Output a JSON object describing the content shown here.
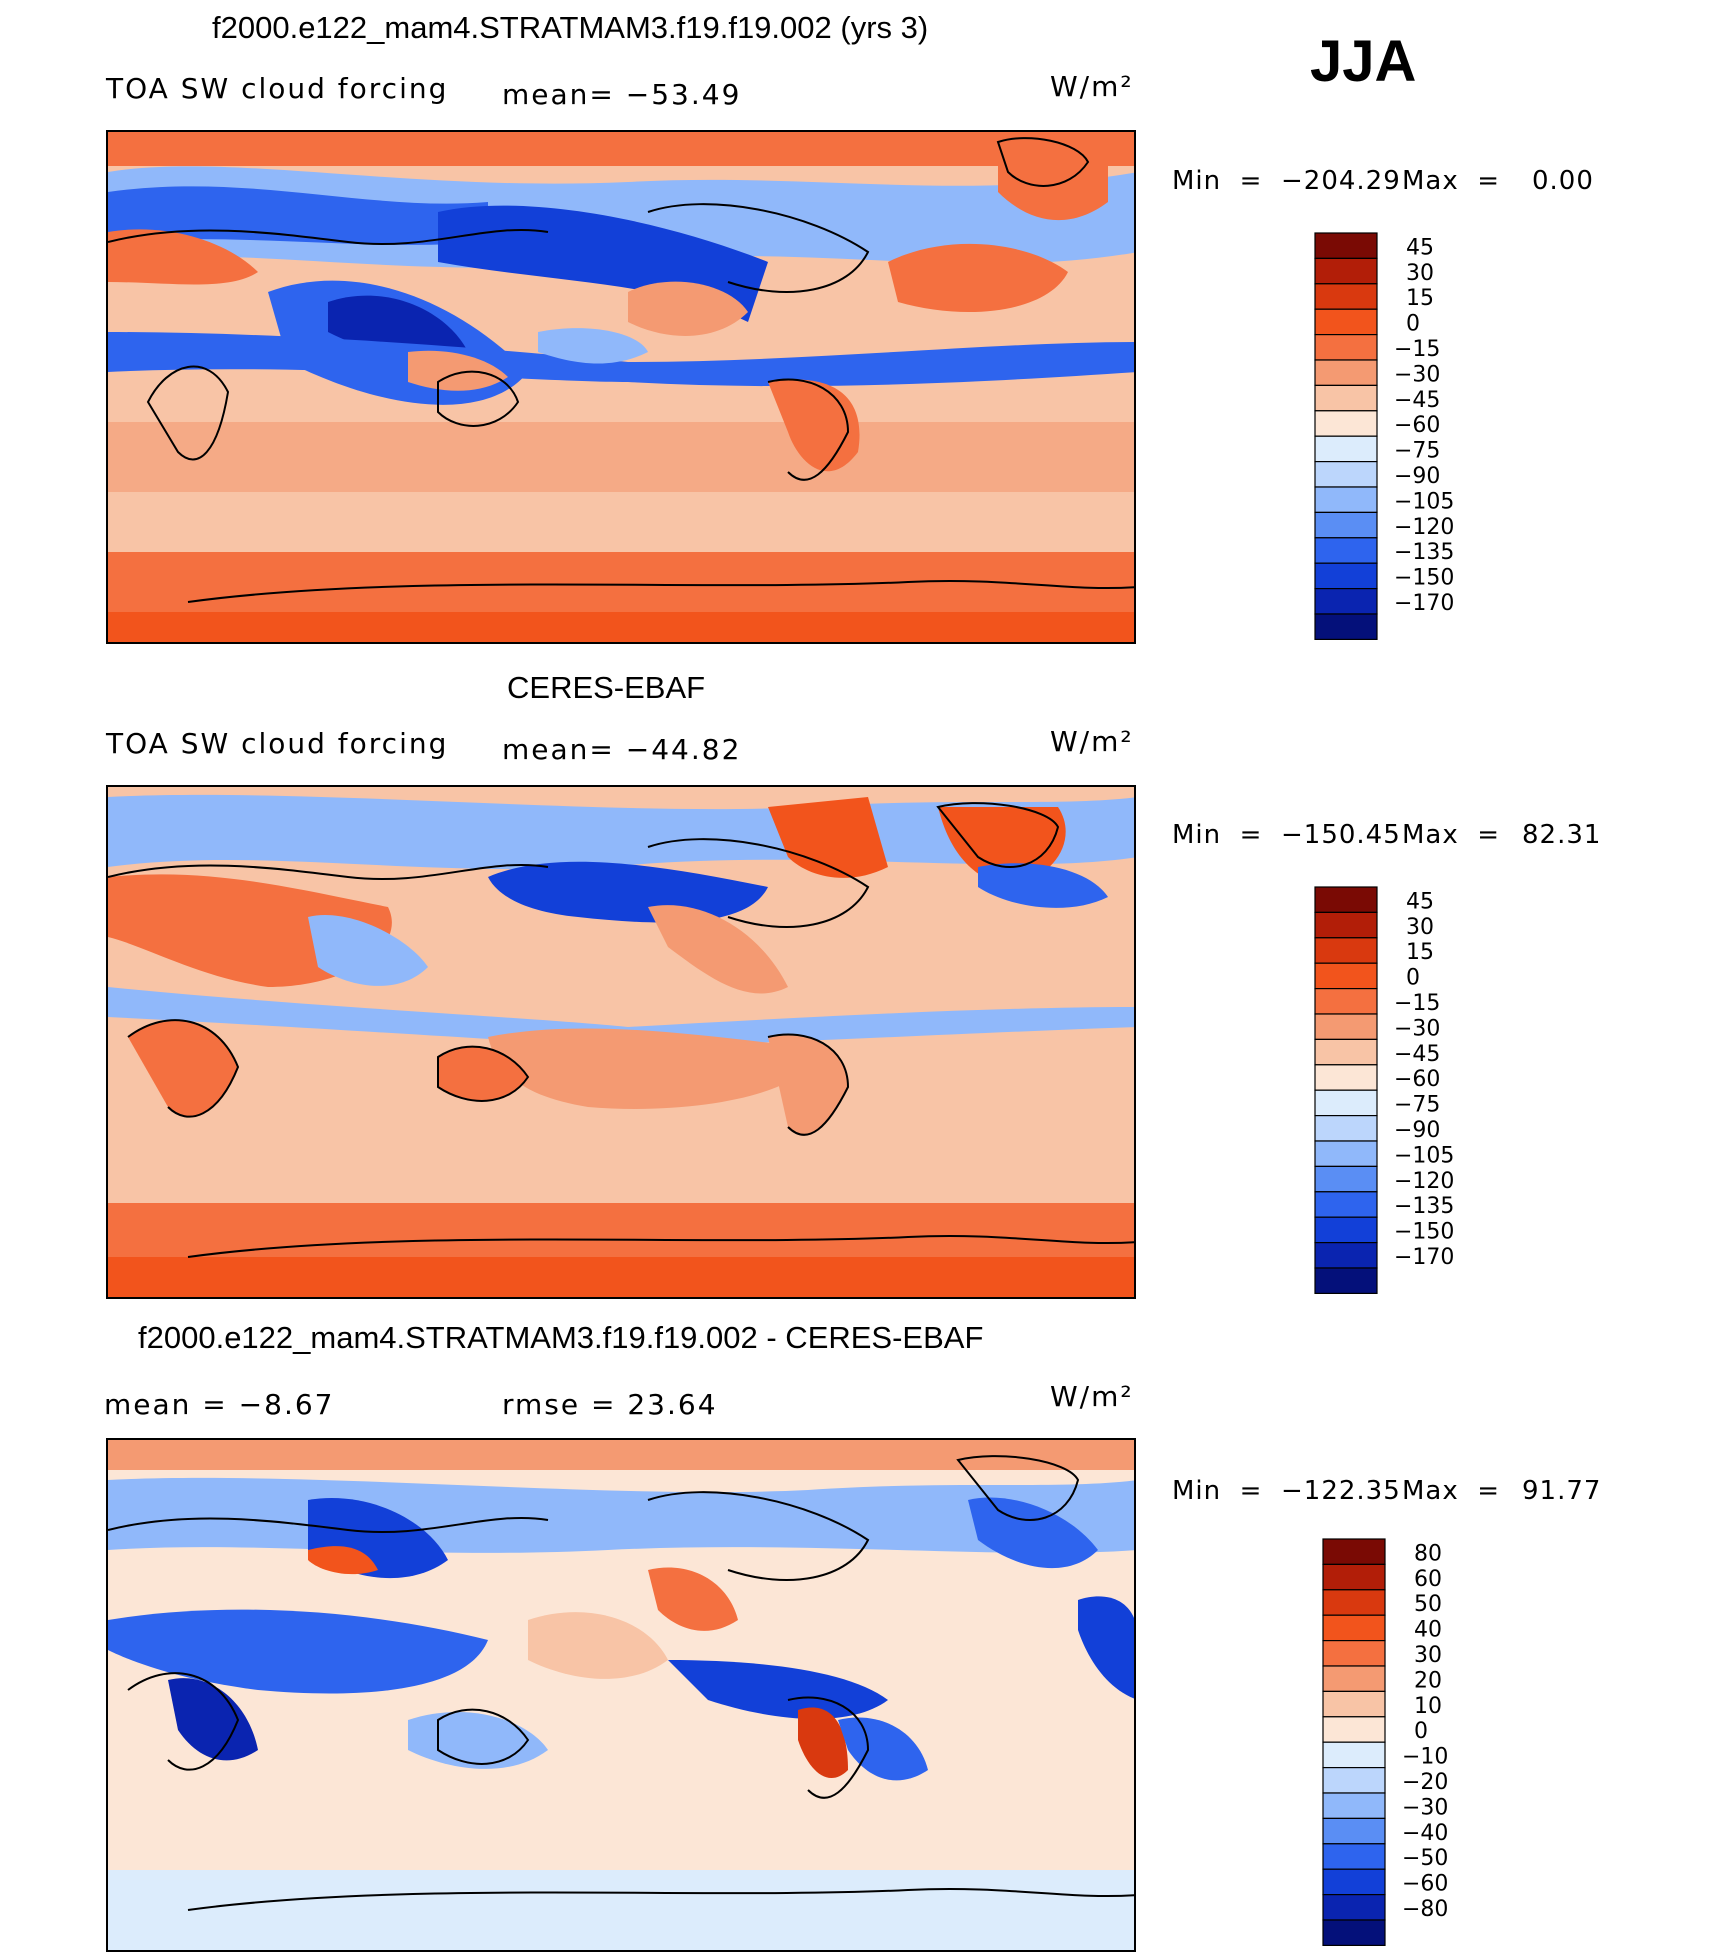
{
  "season": "JJA",
  "panels": [
    {
      "title": "f2000.e122_mam4.STRATMAM3.f19.f19.002 (yrs 3)",
      "left_label": "TOA SW cloud forcing",
      "center_label": "mean= −53.49",
      "units": "W/m²",
      "min_text": "Min",
      "min_value": "−204.29",
      "max_text": "Max",
      "max_value": "0.00",
      "colorbar": {
        "labels": [
          "45",
          "30",
          "15",
          "0",
          "−15",
          "−30",
          "−45",
          "−60",
          "−75",
          "−90",
          "−105",
          "−120",
          "−135",
          "−150",
          "−170"
        ],
        "colors": [
          "#7a0a04",
          "#b21e08",
          "#d9390f",
          "#f2541c",
          "#f47040",
          "#f49a72",
          "#f8c4a6",
          "#fce6d6",
          "#dcecfc",
          "#bcd6fc",
          "#90b8fa",
          "#5a8ef4",
          "#2e64ee",
          "#1240d8",
          "#0a24b0",
          "#04107a"
        ]
      }
    },
    {
      "title": "CERES-EBAF",
      "left_label": "TOA SW cloud forcing",
      "center_label": "mean= −44.82",
      "units": "W/m²",
      "min_text": "Min",
      "min_value": "−150.45",
      "max_text": "Max",
      "max_value": "82.31",
      "colorbar": {
        "labels": [
          "45",
          "30",
          "15",
          "0",
          "−15",
          "−30",
          "−45",
          "−60",
          "−75",
          "−90",
          "−105",
          "−120",
          "−135",
          "−150",
          "−170"
        ],
        "colors": [
          "#7a0a04",
          "#b21e08",
          "#d9390f",
          "#f2541c",
          "#f47040",
          "#f49a72",
          "#f8c4a6",
          "#fce6d6",
          "#dcecfc",
          "#bcd6fc",
          "#90b8fa",
          "#5a8ef4",
          "#2e64ee",
          "#1240d8",
          "#0a24b0",
          "#04107a"
        ]
      }
    },
    {
      "title": "f2000.e122_mam4.STRATMAM3.f19.f19.002 - CERES-EBAF",
      "left_label": "mean = −8.67",
      "center_label": "rmse = 23.64",
      "units": "W/m²",
      "min_text": "Min",
      "min_value": "−122.35",
      "max_text": "Max",
      "max_value": "91.77",
      "colorbar": {
        "labels": [
          "80",
          "60",
          "50",
          "40",
          "30",
          "20",
          "10",
          "0",
          "−10",
          "−20",
          "−30",
          "−40",
          "−50",
          "−60",
          "−80"
        ],
        "colors": [
          "#7a0a04",
          "#b21e08",
          "#d9390f",
          "#f2541c",
          "#f47040",
          "#f49a72",
          "#f8c4a6",
          "#fce6d6",
          "#dcecfc",
          "#bcd6fc",
          "#90b8fa",
          "#5a8ef4",
          "#2e64ee",
          "#1240d8",
          "#0a24b0",
          "#04107a"
        ]
      }
    }
  ]
}
